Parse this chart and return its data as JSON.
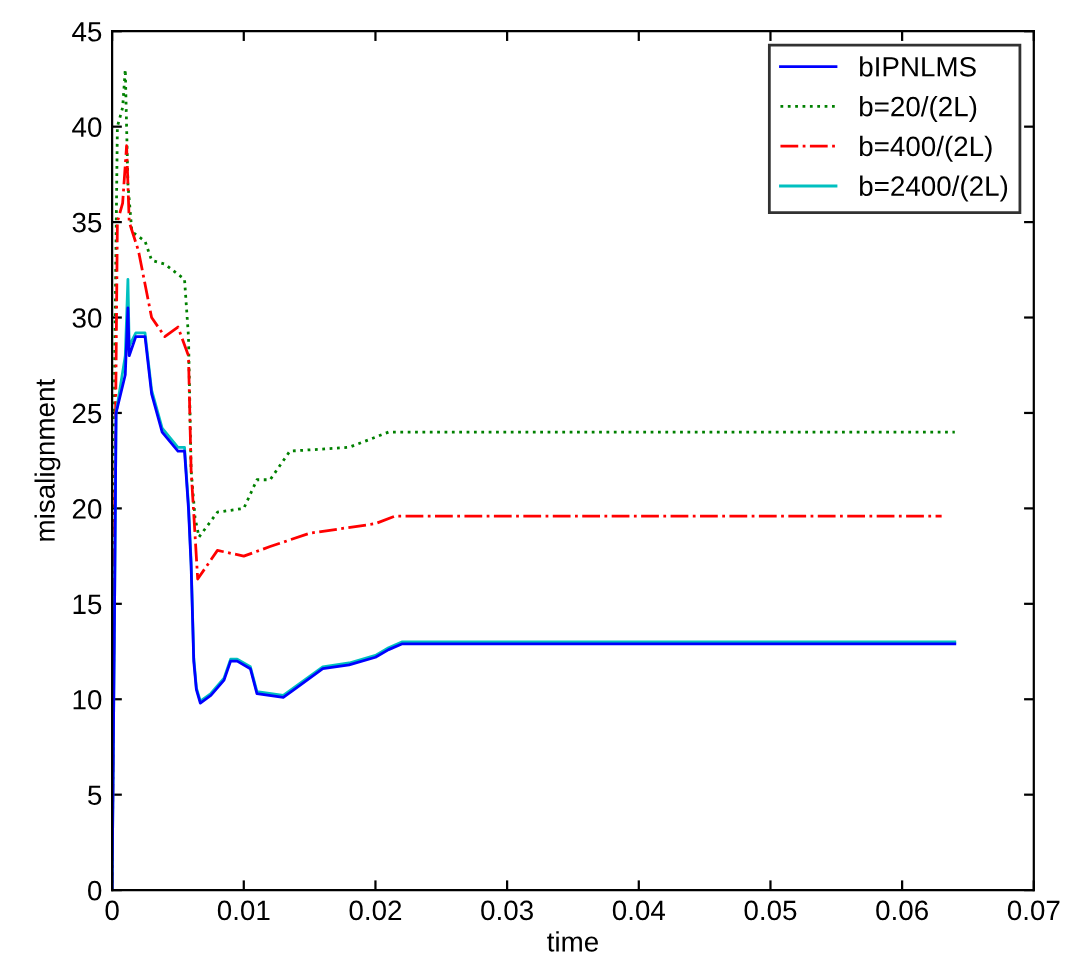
{
  "chart_data": {
    "type": "line",
    "xlabel": "time",
    "ylabel": "misalignment",
    "xlim": [
      0,
      0.07
    ],
    "ylim": [
      0,
      45
    ],
    "xticks": [
      0,
      0.01,
      0.02,
      0.03,
      0.04,
      0.05,
      0.06,
      0.07
    ],
    "yticks": [
      0,
      5,
      10,
      15,
      20,
      25,
      30,
      35,
      40,
      45
    ],
    "grid": false,
    "legend": "top right",
    "marker": "none",
    "series": [
      {
        "name": "bIPNLMS",
        "color": "#0000ff",
        "line_style": "solid",
        "x": [
          0,
          0.0002,
          0.0003,
          0.001,
          0.0012,
          0.0013,
          0.0018,
          0.0025,
          0.003,
          0.0038,
          0.005,
          0.0055,
          0.0058,
          0.006,
          0.0062,
          0.0064,
          0.0067,
          0.0075,
          0.0085,
          0.009,
          0.0095,
          0.0105,
          0.011,
          0.013,
          0.014,
          0.016,
          0.018,
          0.02,
          0.021,
          0.022,
          0.064
        ],
        "values": [
          0,
          16,
          25,
          27,
          30.5,
          28,
          29,
          29,
          26,
          24,
          23,
          23,
          20,
          17,
          12,
          10.5,
          9.8,
          10.2,
          11,
          12,
          12,
          11.6,
          10.3,
          10.1,
          10.6,
          11.6,
          11.8,
          12.2,
          12.6,
          12.9,
          12.9
        ]
      },
      {
        "name": "b=20/(2L)",
        "color": "#008000",
        "line_style": "dotted",
        "x": [
          0,
          0.0002,
          0.0004,
          0.0008,
          0.001,
          0.0012,
          0.0015,
          0.0025,
          0.003,
          0.004,
          0.0055,
          0.0058,
          0.006,
          0.0063,
          0.0066,
          0.008,
          0.01,
          0.011,
          0.012,
          0.0135,
          0.018,
          0.021,
          0.064
        ],
        "values": [
          0,
          28,
          40,
          41,
          43,
          37,
          34.5,
          34,
          33,
          32.8,
          32,
          29,
          22,
          19.5,
          18.5,
          19.8,
          20,
          21.5,
          21.5,
          23,
          23.2,
          24,
          24
        ]
      },
      {
        "name": "b=400/(2L)",
        "color": "#ff0000",
        "line_style": "dashdot",
        "x": [
          0,
          0.0002,
          0.0004,
          0.0008,
          0.0011,
          0.0013,
          0.002,
          0.003,
          0.004,
          0.005,
          0.0058,
          0.006,
          0.0065,
          0.008,
          0.01,
          0.012,
          0.015,
          0.02,
          0.0215,
          0.063
        ],
        "values": [
          0,
          20,
          35,
          36,
          39,
          35,
          33.5,
          30,
          29,
          29.5,
          28,
          22,
          16.3,
          17.8,
          17.5,
          18,
          18.7,
          19.2,
          19.6,
          19.6
        ]
      },
      {
        "name": "b=2400/(2L)",
        "color": "#00c0c0",
        "line_style": "solid",
        "x": [
          0,
          0.0002,
          0.0003,
          0.001,
          0.0012,
          0.0013,
          0.0018,
          0.0025,
          0.003,
          0.0038,
          0.005,
          0.0055,
          0.0058,
          0.006,
          0.0062,
          0.0064,
          0.0067,
          0.0075,
          0.0085,
          0.009,
          0.0095,
          0.0105,
          0.011,
          0.013,
          0.014,
          0.016,
          0.018,
          0.02,
          0.021,
          0.022,
          0.064
        ],
        "values": [
          0,
          16,
          25,
          28,
          32,
          28.5,
          29.2,
          29.2,
          26.2,
          24.2,
          23.2,
          23.2,
          20.2,
          17.2,
          12.2,
          10.6,
          9.9,
          10.3,
          11.1,
          12.1,
          12.1,
          11.7,
          10.4,
          10.2,
          10.7,
          11.7,
          11.9,
          12.3,
          12.7,
          13.0,
          13.0
        ]
      }
    ]
  }
}
